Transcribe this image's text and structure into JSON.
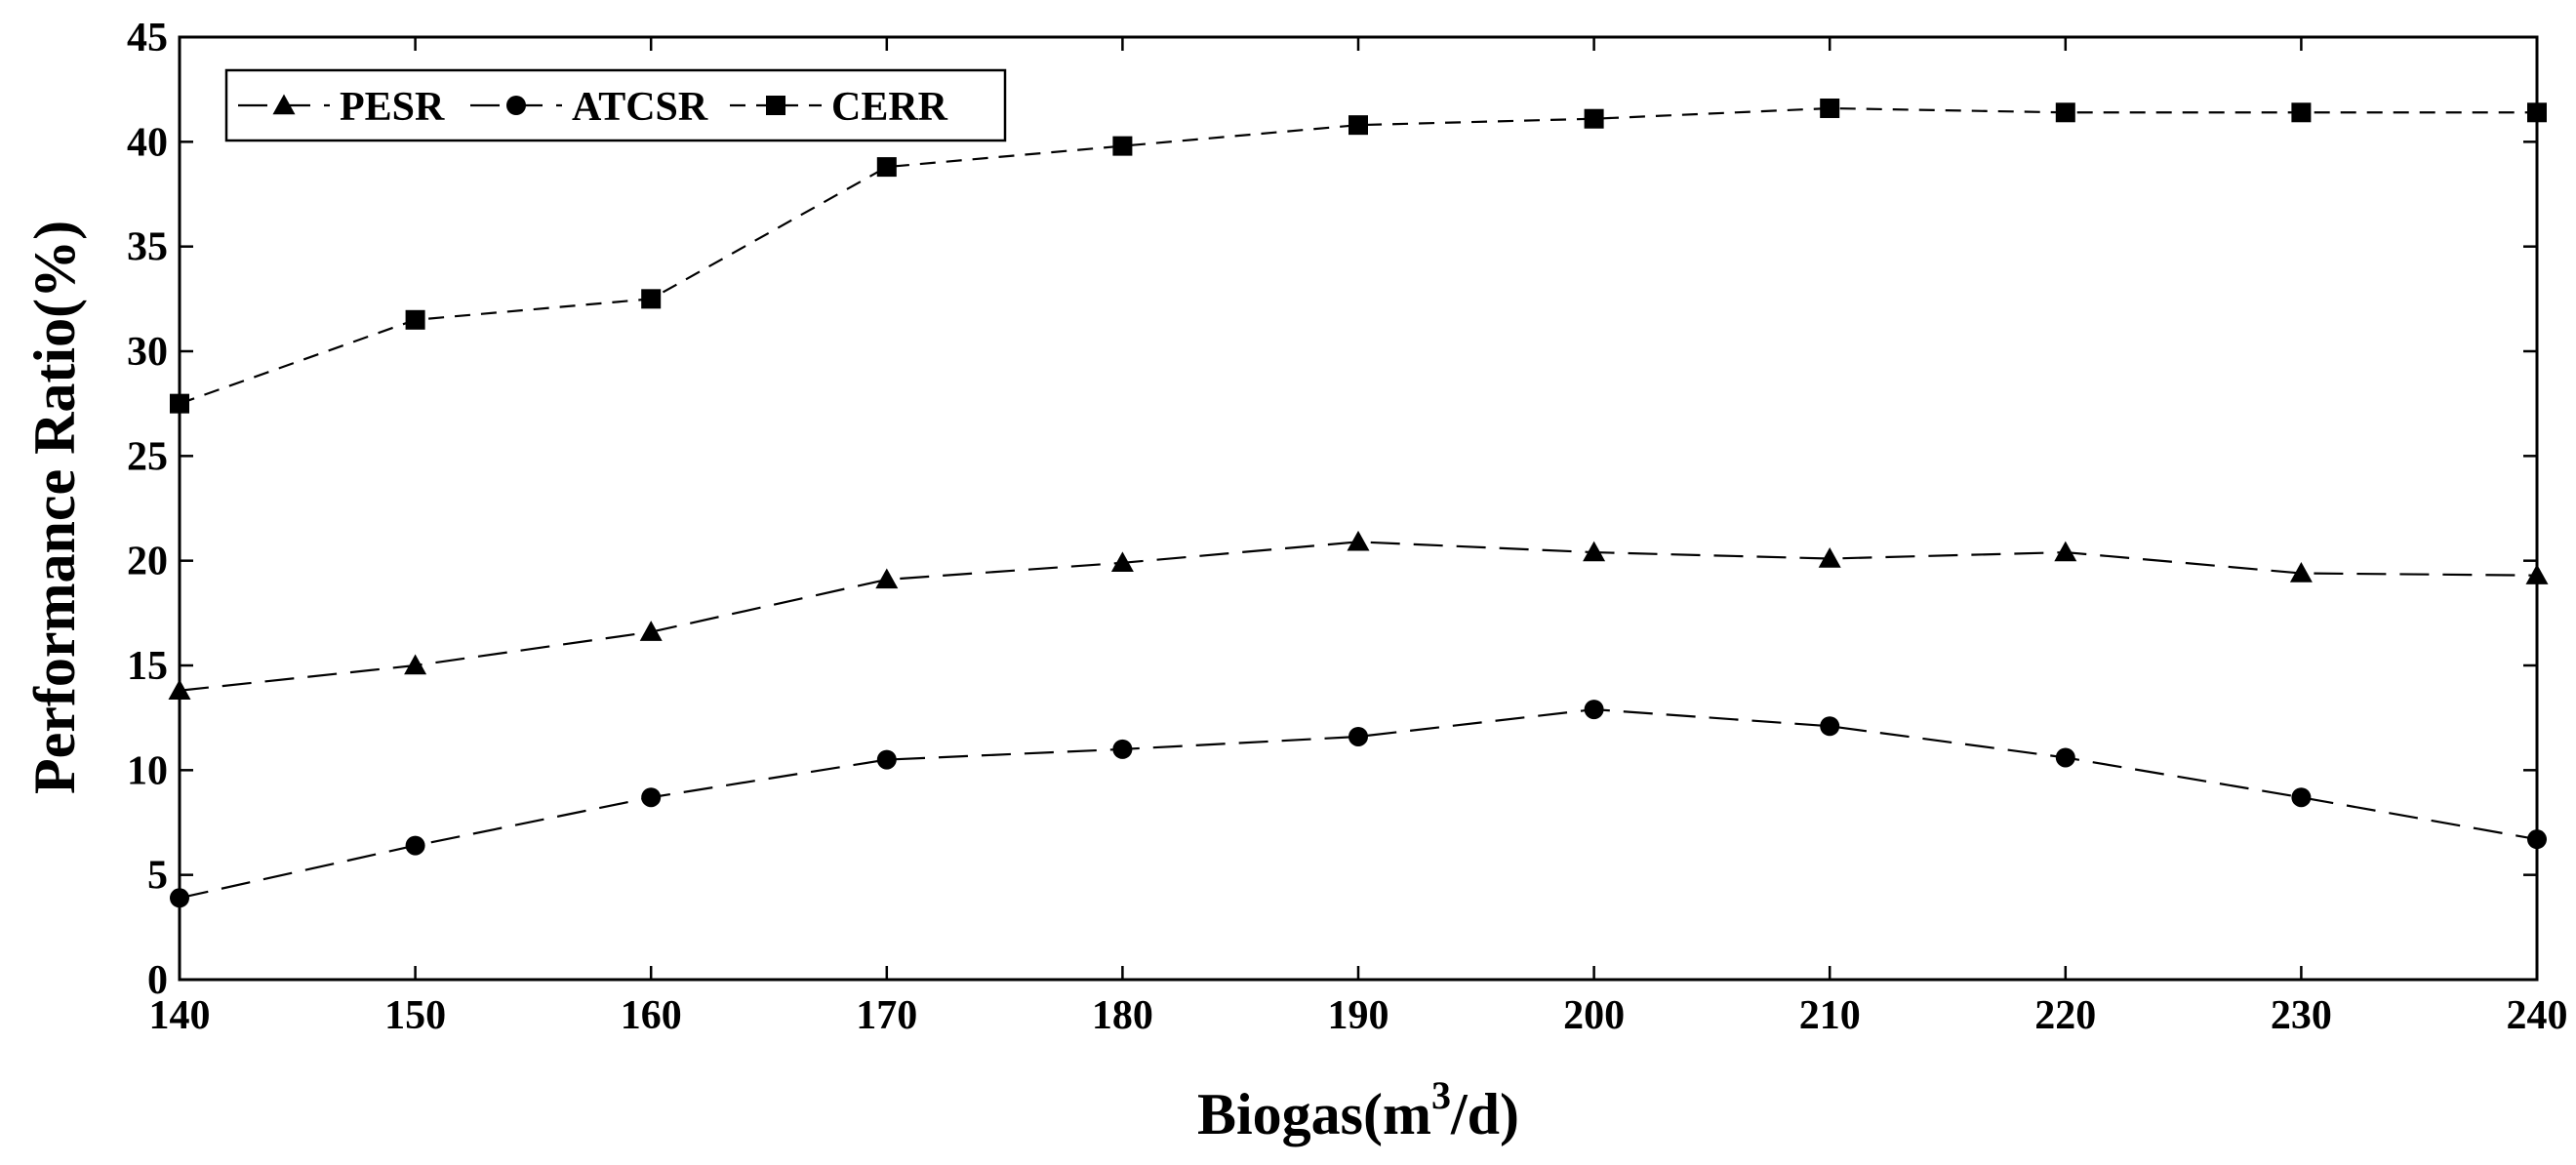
{
  "chart_data": {
    "type": "line",
    "title": "",
    "xlabel": "Biogas(m",
    "xlabel_superscript": "3",
    "xlabel_suffix": "/d)",
    "ylabel": "Performance Ratio(%)",
    "x": [
      140,
      150,
      160,
      170,
      180,
      190,
      200,
      210,
      220,
      230,
      240
    ],
    "xlim": [
      140,
      240
    ],
    "ylim": [
      0,
      45
    ],
    "xticks": [
      140,
      150,
      160,
      170,
      180,
      190,
      200,
      210,
      220,
      230,
      240
    ],
    "yticks": [
      0,
      5,
      10,
      15,
      20,
      25,
      30,
      35,
      40,
      45
    ],
    "grid": false,
    "legend_position": "top-left",
    "series": [
      {
        "name": "PESR",
        "marker": "triangle",
        "dash": "long-dash",
        "values": [
          13.8,
          15.0,
          16.6,
          19.1,
          19.9,
          20.9,
          20.4,
          20.1,
          20.4,
          19.4,
          19.3
        ]
      },
      {
        "name": "ATCSR",
        "marker": "circle",
        "dash": "long-dash",
        "values": [
          3.9,
          6.4,
          8.7,
          10.5,
          11.0,
          11.6,
          12.9,
          12.1,
          10.6,
          8.7,
          6.7
        ]
      },
      {
        "name": "CERR",
        "marker": "square",
        "dash": "short-dash",
        "values": [
          27.5,
          31.5,
          32.5,
          38.8,
          39.8,
          40.8,
          41.1,
          41.6,
          41.4,
          41.4,
          41.4
        ]
      }
    ]
  }
}
